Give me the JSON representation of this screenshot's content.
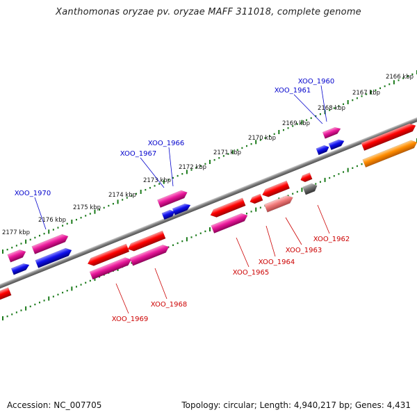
{
  "title": "Xanthomonas oryzae pv. oryzae MAFF 311018, complete genome",
  "footer": {
    "accession": "Accession: NC_007705",
    "summary": "Topology: circular; Length: 4,940,217 bp; Genes: 4,431"
  },
  "scale": {
    "unit": "kbp",
    "ticks": [
      2166,
      2167,
      2168,
      2169,
      2170,
      2171,
      2172,
      2173,
      2174,
      2175,
      2176,
      2177
    ],
    "tick_labels": [
      "2166 kbp",
      "2167 kbp",
      "2168 kbp",
      "2169 kbp",
      "2170 kbp",
      "2171 kbp",
      "2172 kbp",
      "2173 kbp",
      "2174 kbp",
      "2175 kbp",
      "2176 kbp",
      "2177 kbp"
    ]
  },
  "colors": {
    "backbone": "#808080",
    "tick": "#1a7a1a",
    "forward_label": "#0000cc",
    "reverse_label": "#cc0000",
    "cds_red": "#ff0000",
    "cds_pink": "#e8189a",
    "cds_blue": "#1010ee",
    "cds_salmon": "#f07878",
    "cds_orange": "#ff8c00",
    "cds_grey": "#707070"
  },
  "labels": {
    "forward": [
      "XOO_1960",
      "XOO_1961",
      "XOO_1966",
      "XOO_1967",
      "XOO_1970"
    ],
    "reverse": [
      "XOO_1962",
      "XOO_1963",
      "XOO_1964",
      "XOO_1965",
      "XOO_1968",
      "XOO_1969"
    ]
  }
}
